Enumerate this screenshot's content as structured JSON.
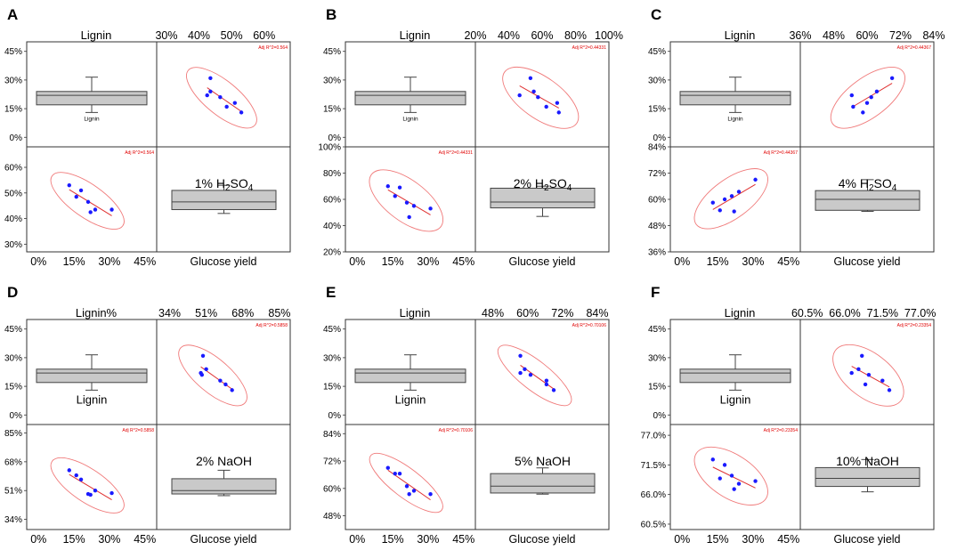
{
  "chart_data": [
    {
      "type": "scatter-matrix",
      "panel_letter": "A",
      "title": "Lignin",
      "treatment_prefix": "1% ",
      "treatment_formula": "H2SO4",
      "treatment_label": "1% H₂SO₄",
      "lignin_box_label": "Lignin",
      "glucose_label": "Glucose yield",
      "adj_r2_label": "Adj R^2=0.564",
      "lignin_ticks": [
        "0%",
        "15%",
        "30%",
        "45%"
      ],
      "lignin_range": [
        -0.05,
        0.5
      ],
      "glucose_ticks_top": [
        "30%",
        "40%",
        "50%",
        "60%"
      ],
      "glucose_ticks_left": [
        "30%",
        "40%",
        "50%",
        "60%"
      ],
      "glucose_range": [
        0.27,
        0.68
      ],
      "lignin_box": {
        "min": 0.13,
        "q1": 0.17,
        "median": 0.22,
        "q3": 0.24,
        "max": 0.315
      },
      "glucose_box": {
        "min": 0.42,
        "q1": 0.435,
        "median": 0.465,
        "q3": 0.51,
        "max": 0.53
      },
      "points": [
        [
          0.13,
          0.53
        ],
        [
          0.16,
          0.485
        ],
        [
          0.18,
          0.51
        ],
        [
          0.21,
          0.465
        ],
        [
          0.22,
          0.425
        ],
        [
          0.24,
          0.435
        ],
        [
          0.31,
          0.435
        ]
      ]
    },
    {
      "type": "scatter-matrix",
      "panel_letter": "B",
      "title": "Lignin",
      "treatment_prefix": "2% ",
      "treatment_formula": "H2SO4",
      "treatment_label": "2% H₂SO₄",
      "lignin_box_label": "Lignin",
      "glucose_label": "Glucose yield",
      "adj_r2_label": "Adj R^2=0.44331",
      "lignin_ticks": [
        "0%",
        "15%",
        "30%",
        "45%"
      ],
      "lignin_range": [
        -0.05,
        0.5
      ],
      "glucose_ticks_top": [
        "20%",
        "40%",
        "60%",
        "80%",
        "100%"
      ],
      "glucose_ticks_left": [
        "20%",
        "40%",
        "60%",
        "80%",
        "100%"
      ],
      "glucose_range": [
        0.2,
        1.0
      ],
      "lignin_box": {
        "min": 0.13,
        "q1": 0.17,
        "median": 0.22,
        "q3": 0.24,
        "max": 0.315
      },
      "glucose_box": {
        "min": 0.47,
        "q1": 0.535,
        "median": 0.58,
        "q3": 0.685,
        "max": 0.7
      },
      "points": [
        [
          0.13,
          0.7
        ],
        [
          0.16,
          0.625
        ],
        [
          0.18,
          0.69
        ],
        [
          0.21,
          0.575
        ],
        [
          0.22,
          0.465
        ],
        [
          0.24,
          0.55
        ],
        [
          0.31,
          0.53
        ]
      ]
    },
    {
      "type": "scatter-matrix",
      "panel_letter": "C",
      "title": "Lignin",
      "treatment_prefix": "4% ",
      "treatment_formula": "H2SO4",
      "treatment_label": "4% H₂SO₄",
      "lignin_box_label": "Lignin",
      "glucose_label": "Glucose yield",
      "adj_r2_label": "Adj R^2=0.44367",
      "lignin_ticks": [
        "0%",
        "15%",
        "30%",
        "45%"
      ],
      "lignin_range": [
        -0.05,
        0.5
      ],
      "glucose_ticks_top": [
        "36%",
        "48%",
        "60%",
        "72%",
        "84%"
      ],
      "glucose_ticks_left": [
        "36%",
        "48%",
        "60%",
        "72%",
        "84%"
      ],
      "glucose_range": [
        0.36,
        0.84
      ],
      "lignin_box": {
        "min": 0.13,
        "q1": 0.17,
        "median": 0.22,
        "q3": 0.24,
        "max": 0.315
      },
      "glucose_box": {
        "min": 0.545,
        "q1": 0.55,
        "median": 0.6,
        "q3": 0.64,
        "max": 0.69
      },
      "points": [
        [
          0.13,
          0.585
        ],
        [
          0.16,
          0.55
        ],
        [
          0.18,
          0.6
        ],
        [
          0.21,
          0.615
        ],
        [
          0.22,
          0.545
        ],
        [
          0.24,
          0.635
        ],
        [
          0.31,
          0.69
        ]
      ]
    },
    {
      "type": "scatter-matrix",
      "panel_letter": "D",
      "title": "Lignin%",
      "treatment_prefix": "2% NaOH",
      "treatment_formula": "",
      "treatment_label": "2% NaOH",
      "lignin_box_label": "Lignin",
      "glucose_label": "Glucose yield",
      "adj_r2_label": "Adj R^2=0.5858",
      "lignin_ticks": [
        "0%",
        "15%",
        "30%",
        "45%"
      ],
      "lignin_range": [
        -0.05,
        0.5
      ],
      "glucose_ticks_top": [
        "34%",
        "51%",
        "68%",
        "85%"
      ],
      "glucose_ticks_left": [
        "34%",
        "51%",
        "68%",
        "85%"
      ],
      "glucose_range": [
        0.28,
        0.9
      ],
      "lignin_box": {
        "min": 0.13,
        "q1": 0.17,
        "median": 0.22,
        "q3": 0.24,
        "max": 0.315
      },
      "glucose_box": {
        "min": 0.48,
        "q1": 0.49,
        "median": 0.51,
        "q3": 0.58,
        "max": 0.63
      },
      "points": [
        [
          0.13,
          0.63
        ],
        [
          0.16,
          0.6
        ],
        [
          0.18,
          0.575
        ],
        [
          0.21,
          0.49
        ],
        [
          0.22,
          0.485
        ],
        [
          0.24,
          0.51
        ],
        [
          0.31,
          0.495
        ]
      ]
    },
    {
      "type": "scatter-matrix",
      "panel_letter": "E",
      "title": "Lignin",
      "treatment_prefix": "5% NaOH",
      "treatment_formula": "",
      "treatment_label": "5% NaOH",
      "lignin_box_label": "Lignin",
      "glucose_label": "Glucose yield",
      "adj_r2_label": "Adj R^2=0.70106",
      "lignin_ticks": [
        "0%",
        "15%",
        "30%",
        "45%"
      ],
      "lignin_range": [
        -0.05,
        0.5
      ],
      "glucose_ticks_top": [
        "48%",
        "60%",
        "72%",
        "84%"
      ],
      "glucose_ticks_left": [
        "48%",
        "60%",
        "72%",
        "84%"
      ],
      "glucose_range": [
        0.42,
        0.88
      ],
      "lignin_box": {
        "min": 0.13,
        "q1": 0.17,
        "median": 0.22,
        "q3": 0.24,
        "max": 0.315
      },
      "glucose_box": {
        "min": 0.575,
        "q1": 0.58,
        "median": 0.61,
        "q3": 0.665,
        "max": 0.69
      },
      "points": [
        [
          0.13,
          0.69
        ],
        [
          0.16,
          0.665
        ],
        [
          0.18,
          0.665
        ],
        [
          0.21,
          0.61
        ],
        [
          0.22,
          0.575
        ],
        [
          0.24,
          0.59
        ],
        [
          0.31,
          0.575
        ]
      ]
    },
    {
      "type": "scatter-matrix",
      "panel_letter": "F",
      "title": "Lignin",
      "treatment_prefix": "10% NaOH",
      "treatment_formula": "",
      "treatment_label": "10% NaOH",
      "lignin_box_label": "Lignin",
      "glucose_label": "Glucose yield",
      "adj_r2_label": "Adj R^2=0.23354",
      "lignin_ticks": [
        "0%",
        "15%",
        "30%",
        "45%"
      ],
      "lignin_range": [
        -0.05,
        0.5
      ],
      "glucose_ticks_top": [
        "60.5%",
        "66.0%",
        "71.5%",
        "77.0%"
      ],
      "glucose_ticks_left": [
        "60.5%",
        "66.0%",
        "71.5%",
        "77.0%"
      ],
      "glucose_range": [
        0.595,
        0.79
      ],
      "lignin_box": {
        "min": 0.13,
        "q1": 0.17,
        "median": 0.22,
        "q3": 0.24,
        "max": 0.315
      },
      "glucose_box": {
        "min": 0.665,
        "q1": 0.675,
        "median": 0.69,
        "q3": 0.71,
        "max": 0.725
      },
      "points": [
        [
          0.13,
          0.725
        ],
        [
          0.16,
          0.69
        ],
        [
          0.18,
          0.715
        ],
        [
          0.21,
          0.695
        ],
        [
          0.22,
          0.67
        ],
        [
          0.24,
          0.68
        ],
        [
          0.31,
          0.685
        ]
      ]
    }
  ]
}
